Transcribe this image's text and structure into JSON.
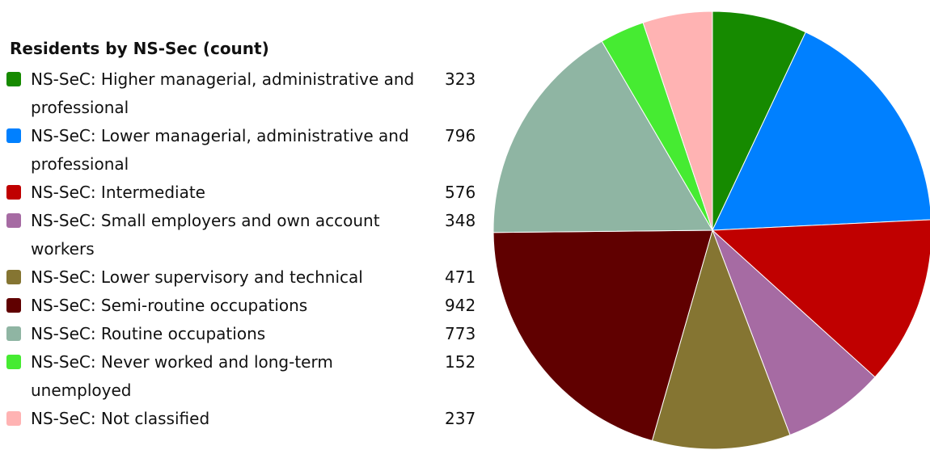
{
  "chart_data": {
    "type": "pie",
    "title": "Residents by NS-Sec (count)",
    "categories": [
      "NS-SeC: Higher managerial, administrative and professional",
      "NS-SeC: Lower managerial, administrative and professional",
      "NS-SeC: Intermediate",
      "NS-SeC: Small employers and own account workers",
      "NS-SeC: Lower supervisory and technical",
      "NS-SeC: Semi-routine occupations",
      "NS-SeC: Routine occupations",
      "NS-SeC: Never worked and long-term unemployed",
      "NS-SeC: Not classified"
    ],
    "values": [
      323,
      796,
      576,
      348,
      471,
      942,
      773,
      152,
      237
    ],
    "colors": [
      "#168a00",
      "#0080ff",
      "#c00000",
      "#a66ba3",
      "#857532",
      "#600000",
      "#8fb5a3",
      "#46eb32",
      "#ffb3b3"
    ]
  }
}
